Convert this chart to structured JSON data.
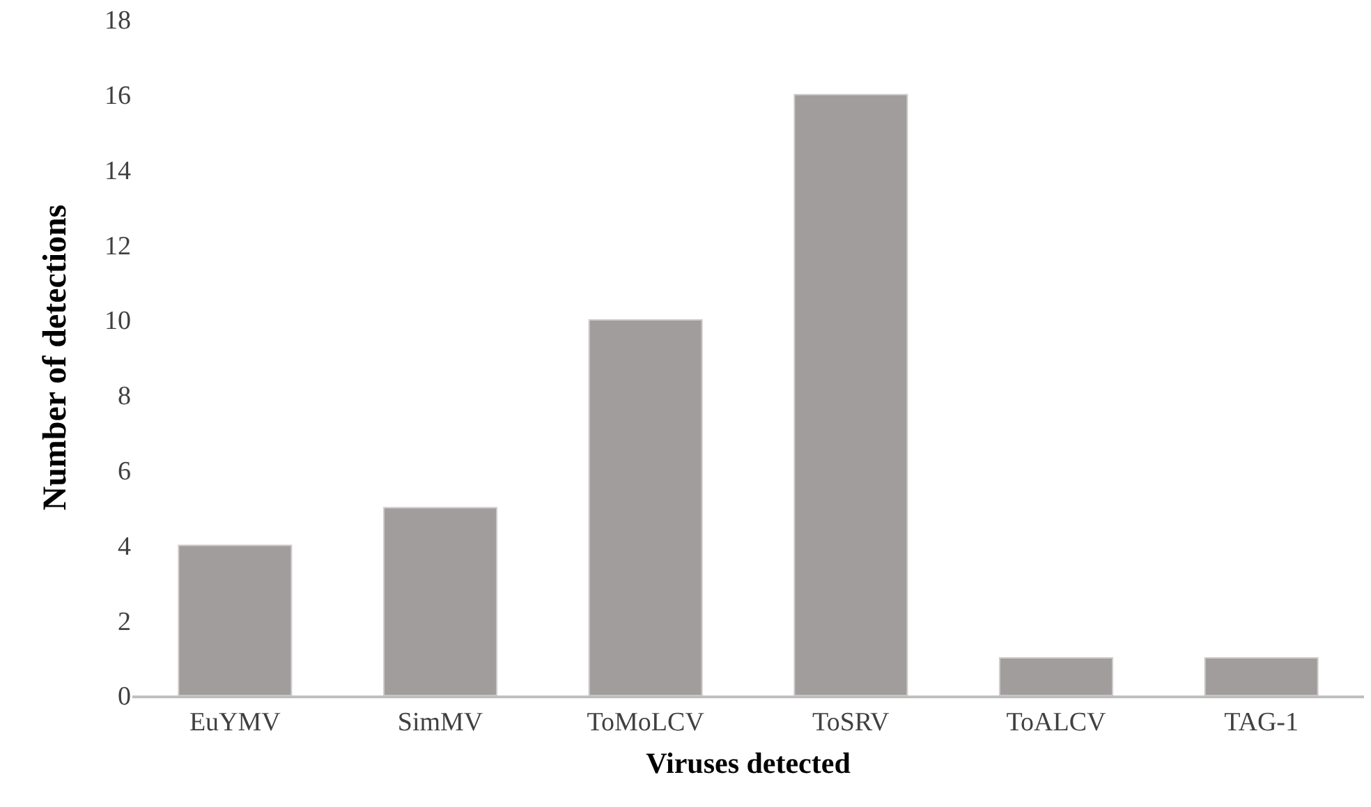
{
  "chart_data": {
    "type": "bar",
    "xlabel": "Viruses detected",
    "ylabel": "Number of detections",
    "categories": [
      "EuYMV",
      "SimMV",
      "ToMoLCV",
      "ToSRV",
      "ToALCV",
      "TAG-1"
    ],
    "values": [
      4,
      5,
      10,
      16,
      1,
      1
    ],
    "color": "#a19d9c",
    "ylim": [
      0,
      18
    ],
    "yticks": [
      0,
      2,
      4,
      6,
      8,
      10,
      12,
      14,
      16,
      18
    ]
  }
}
